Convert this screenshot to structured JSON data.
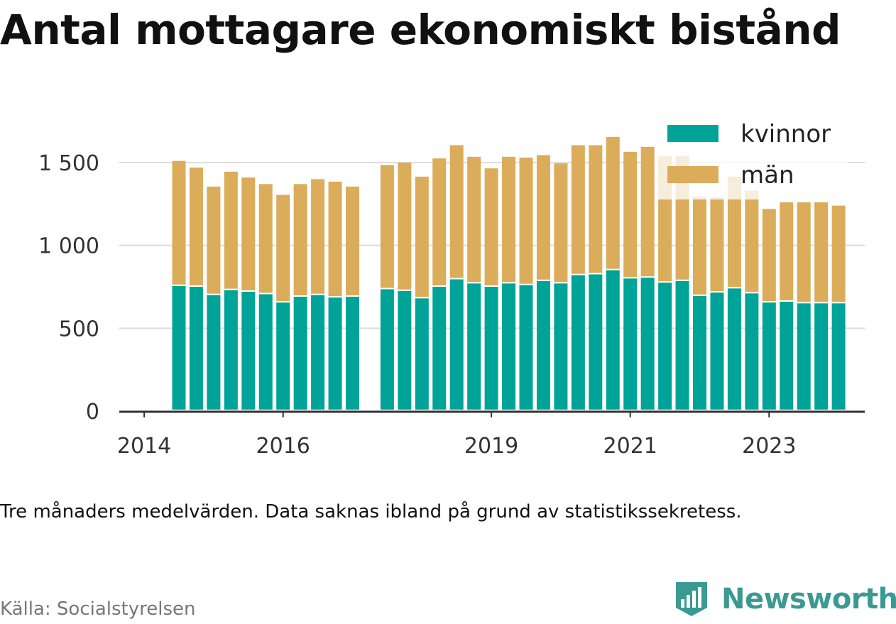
{
  "title": "Antal mottagare ekonomiskt bistånd",
  "note": "Tre månaders medelvärden. Data saknas ibland på grund av statistikssekretess.",
  "source": "Källa: Socialstyrelsen",
  "brand": "Newsworthy",
  "colors": {
    "kvinnor": "#00a398",
    "man": "#dbac5a",
    "grid": "#dddddd",
    "axis": "#333333",
    "text": "#333333",
    "brand": "#3a9a93"
  },
  "chart_data": {
    "type": "bar",
    "stacked": true,
    "x_type": "quarter",
    "x_tick_labels": [
      "2014",
      "2016",
      "2019",
      "2021",
      "2023"
    ],
    "y_ticks": [
      0,
      500,
      1000,
      1500
    ],
    "y_tick_labels": [
      "0",
      "500",
      "1 000",
      "1 500"
    ],
    "ylim": [
      0,
      1800
    ],
    "legend_position": "top-right",
    "categories": [
      "2014-Q3",
      "2014-Q4",
      "2015-Q1",
      "2015-Q2",
      "2015-Q3",
      "2015-Q4",
      "2016-Q1",
      "2016-Q2",
      "2016-Q3",
      "2016-Q4",
      "2017-Q1",
      "2017-Q3",
      "2017-Q4",
      "2018-Q1",
      "2018-Q2",
      "2018-Q3",
      "2018-Q4",
      "2019-Q1",
      "2019-Q2",
      "2019-Q3",
      "2019-Q4",
      "2020-Q1",
      "2020-Q2",
      "2020-Q3",
      "2020-Q4",
      "2021-Q1",
      "2021-Q2",
      "2021-Q3",
      "2021-Q4",
      "2022-Q1",
      "2022-Q2",
      "2022-Q3",
      "2022-Q4",
      "2023-Q1",
      "2023-Q2",
      "2023-Q3",
      "2023-Q4",
      "2024-Q1"
    ],
    "series": [
      {
        "name": "kvinnor",
        "values": [
          755,
          750,
          700,
          730,
          720,
          705,
          655,
          690,
          700,
          685,
          690,
          735,
          725,
          680,
          750,
          795,
          770,
          750,
          770,
          760,
          785,
          770,
          820,
          825,
          850,
          800,
          805,
          775,
          785,
          695,
          715,
          740,
          710,
          655,
          660,
          650,
          650,
          650
        ]
      },
      {
        "name": "män",
        "values": [
          755,
          720,
          655,
          715,
          690,
          665,
          650,
          680,
          700,
          700,
          665,
          750,
          775,
          735,
          775,
          810,
          765,
          715,
          765,
          770,
          760,
          725,
          785,
          780,
          805,
          765,
          790,
          765,
          755,
          600,
          575,
          675,
          620,
          565,
          600,
          610,
          610,
          590
        ]
      }
    ]
  }
}
